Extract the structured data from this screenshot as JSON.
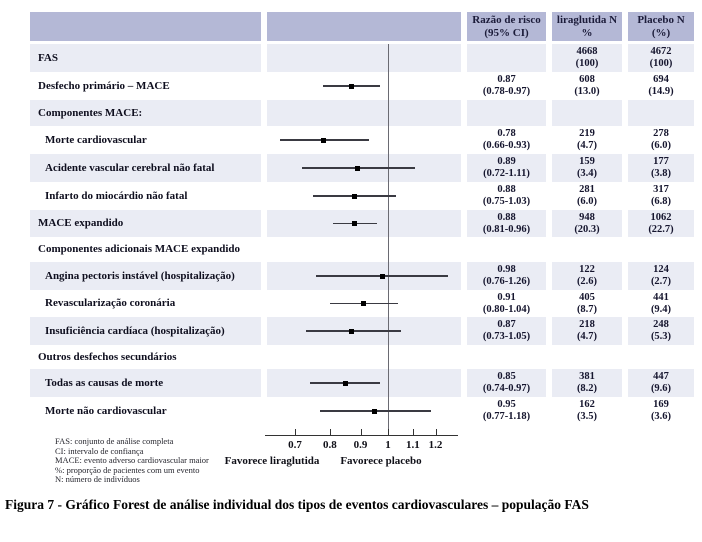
{
  "figure": {
    "caption": "Figura 7 - Gráfico Forest de análise individual dos tipos de eventos cardiovasculares – população FAS",
    "footnotes": [
      "FAS: conjunto de análise completa",
      "CI: intervalo de confiança",
      "MACE: evento adverso cardiovascular maior",
      "%: proporção de pacientes com um evento",
      "N: número de indivíduos"
    ]
  },
  "chart_data": {
    "type": "forest",
    "x_scale": "log",
    "x_ticks": [
      {
        "value": 0.7,
        "label": "0.7"
      },
      {
        "value": 0.8,
        "label": "0.8"
      },
      {
        "value": 0.9,
        "label": "0.9"
      },
      {
        "value": 1,
        "label": "1"
      },
      {
        "value": 1.1,
        "label": "1.1"
      },
      {
        "value": 1.2,
        "label": "1.2"
      }
    ],
    "reference_line": 1,
    "favors_left": "Favorece liraglutida",
    "favors_right": "Favorece placebo",
    "column_headers": [
      {
        "lines": [
          "Razão de risco",
          "(95% CI)"
        ]
      },
      {
        "lines": [
          "liraglutida N",
          "%"
        ]
      },
      {
        "lines": [
          "Placebo N",
          "(%)"
        ]
      }
    ],
    "rows": [
      {
        "label": "FAS",
        "indent": 0,
        "lira": [
          "4668",
          "(100)"
        ],
        "placebo": [
          "4672",
          "(100)"
        ]
      },
      {
        "label": "Desfecho primário – MACE",
        "indent": 0,
        "est": 0.87,
        "lo": 0.78,
        "hi": 0.97,
        "rr": [
          "0.87",
          "(0.78-0.97)"
        ],
        "lira": [
          "608",
          "(13.0)"
        ],
        "placebo": [
          "694",
          "(14.9)"
        ]
      },
      {
        "label": "Componentes MACE:",
        "indent": 0
      },
      {
        "label": "Morte cardiovascular",
        "indent": 1,
        "est": 0.78,
        "lo": 0.66,
        "hi": 0.93,
        "rr": [
          "0.78",
          "(0.66-0.93)"
        ],
        "lira": [
          "219",
          "(4.7)"
        ],
        "placebo": [
          "278",
          "(6.0)"
        ]
      },
      {
        "label": "Acidente vascular cerebral não fatal",
        "indent": 1,
        "est": 0.89,
        "lo": 0.72,
        "hi": 1.11,
        "rr": [
          "0.89",
          "(0.72-1.11)"
        ],
        "lira": [
          "159",
          "(3.4)"
        ],
        "placebo": [
          "177",
          "(3.8)"
        ]
      },
      {
        "label": "Infarto do miocárdio não fatal",
        "indent": 1,
        "est": 0.88,
        "lo": 0.75,
        "hi": 1.03,
        "rr": [
          "0.88",
          "(0.75-1.03)"
        ],
        "lira": [
          "281",
          "(6.0)"
        ],
        "placebo": [
          "317",
          "(6.8)"
        ]
      },
      {
        "label": "MACE expandido",
        "indent": 0,
        "est": 0.88,
        "lo": 0.81,
        "hi": 0.96,
        "rr": [
          "0.88",
          "(0.81-0.96)"
        ],
        "lira": [
          "948",
          "(20.3)"
        ],
        "placebo": [
          "1062",
          "(22.7)"
        ]
      },
      {
        "label": "Componentes adicionais MACE expandido",
        "indent": 0
      },
      {
        "label": "Angina pectoris instável (hospitalização)",
        "indent": 1,
        "est": 0.98,
        "lo": 0.76,
        "hi": 1.26,
        "rr": [
          "0.98",
          "(0.76-1.26)"
        ],
        "lira": [
          "122",
          "(2.6)"
        ],
        "placebo": [
          "124",
          "(2.7)"
        ]
      },
      {
        "label": "Revascularização coronária",
        "indent": 1,
        "est": 0.91,
        "lo": 0.8,
        "hi": 1.04,
        "rr": [
          "0.91",
          "(0.80-1.04)"
        ],
        "lira": [
          "405",
          "(8.7)"
        ],
        "placebo": [
          "441",
          "(9.4)"
        ]
      },
      {
        "label": "Insuficiência cardíaca (hospitalização)",
        "indent": 1,
        "est": 0.87,
        "lo": 0.73,
        "hi": 1.05,
        "rr": [
          "0.87",
          "(0.73-1.05)"
        ],
        "lira": [
          "218",
          "(4.7)"
        ],
        "placebo": [
          "248",
          "(5.3)"
        ]
      },
      {
        "label": "Outros desfechos secundários",
        "indent": 0
      },
      {
        "label": "Todas as causas de morte",
        "indent": 1,
        "est": 0.85,
        "lo": 0.74,
        "hi": 0.97,
        "rr": [
          "0.85",
          "(0.74-0.97)"
        ],
        "lira": [
          "381",
          "(8.2)"
        ],
        "placebo": [
          "447",
          "(9.6)"
        ]
      },
      {
        "label": "Morte não cardiovascular",
        "indent": 1,
        "est": 0.95,
        "lo": 0.77,
        "hi": 1.18,
        "rr": [
          "0.95",
          "(0.77-1.18)"
        ],
        "lira": [
          "162",
          "(3.5)"
        ],
        "placebo": [
          "169",
          "(3.6)"
        ]
      }
    ],
    "colors": {
      "header_band": "#b4b8d6",
      "row_band": "#eaecf4",
      "marker": "#000000",
      "ci_line": "#3a3a42",
      "reference_line": "#6a6a72",
      "axis": "#333333",
      "header_text": "#1c1c3a",
      "value_text": "#15152e",
      "label_text": "#0e0e1e"
    }
  }
}
